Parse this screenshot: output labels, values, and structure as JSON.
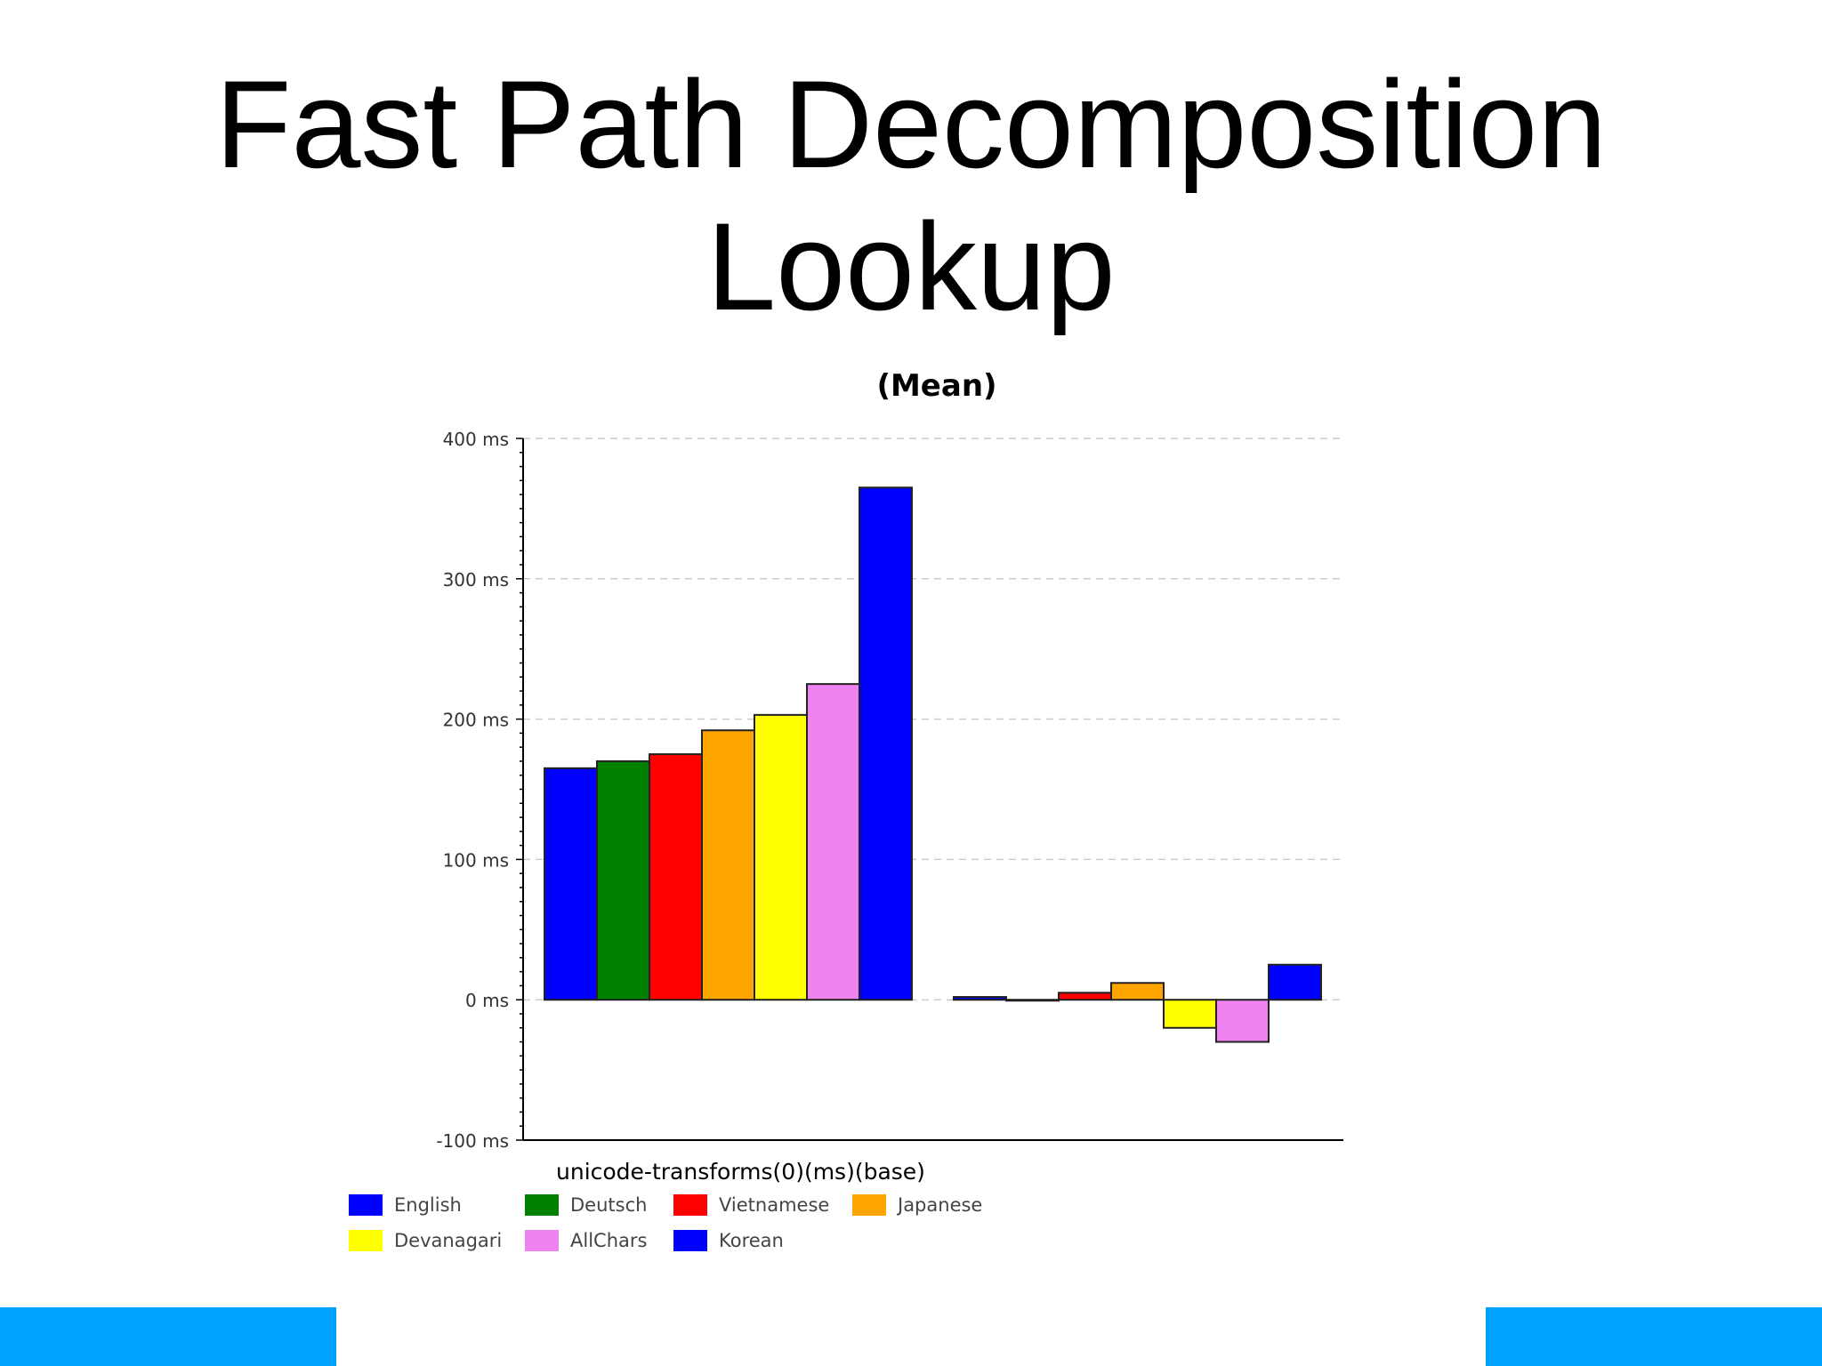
{
  "slide": {
    "title_line1": "Fast Path Decomposition",
    "title_line2": "Lookup",
    "accent_color": "#00A2FF"
  },
  "chart_data": {
    "type": "bar",
    "title": "(Mean)",
    "xlabel": "unicode-transforms(0)(ms)(base)",
    "ylabel": "",
    "ylim": [
      -100,
      400
    ],
    "yticks": [
      -100,
      0,
      100,
      200,
      300,
      400
    ],
    "ytick_labels": [
      "-100 ms",
      "0 ms",
      "100 ms",
      "200 ms",
      "300 ms",
      "400 ms"
    ],
    "grid": true,
    "legend_position": "bottom-left",
    "groups": 2,
    "series": [
      {
        "name": "English",
        "color": "#0000FF",
        "values": [
          165,
          2
        ]
      },
      {
        "name": "Deutsch",
        "color": "#008000",
        "values": [
          170,
          0
        ]
      },
      {
        "name": "Vietnamese",
        "color": "#FF0000",
        "values": [
          175,
          5
        ]
      },
      {
        "name": "Japanese",
        "color": "#FFA500",
        "values": [
          192,
          12
        ]
      },
      {
        "name": "Devanagari",
        "color": "#FFFF00",
        "values": [
          203,
          -20
        ]
      },
      {
        "name": "AllChars",
        "color": "#EE82EE",
        "values": [
          225,
          -30
        ]
      },
      {
        "name": "Korean",
        "color": "#0000FF",
        "values": [
          365,
          25
        ]
      }
    ]
  }
}
